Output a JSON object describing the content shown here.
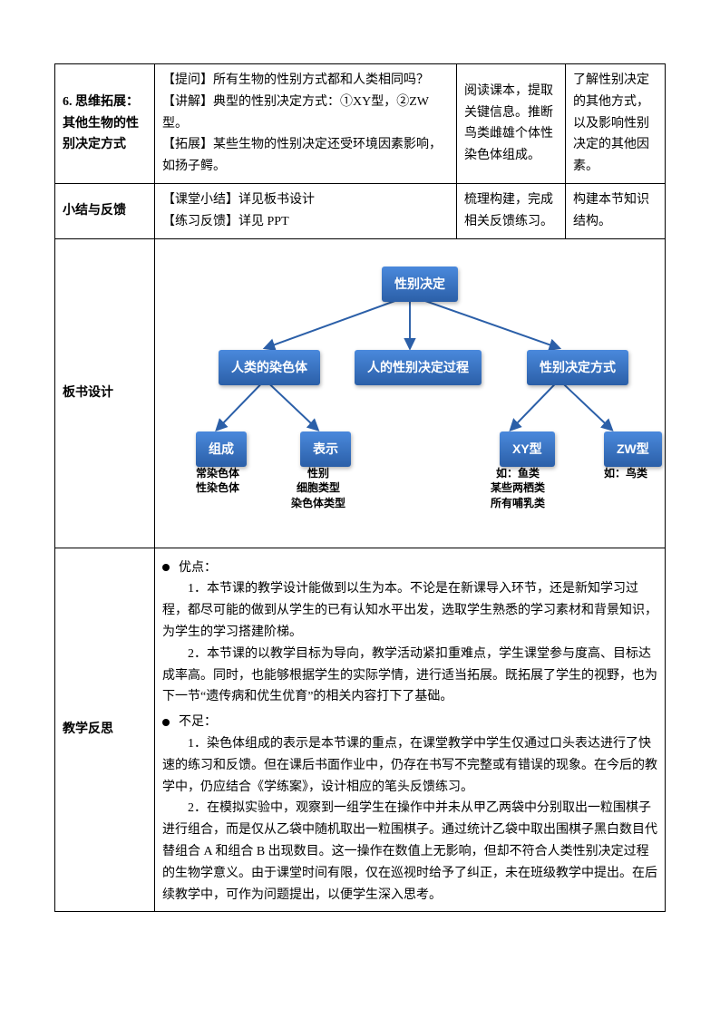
{
  "rows": {
    "r1": {
      "label": "6. 思维拓展：其他生物的性别决定方式",
      "col2_l1": "【提问】所有生物的性别方式都和人类相同吗？",
      "col2_l2": "【讲解】典型的性别决定方式：①XY型，②ZW 型。",
      "col2_l3": "【拓展】某些生物的性别决定还受环境因素影响，如扬子鳄。",
      "col3": "阅读课本，提取关键信息。推断鸟类雌雄个体性染色体组成。",
      "col4": "了解性别决定的其他方式，以及影响性别决定的其他因素。"
    },
    "r2": {
      "label": "小结与反馈",
      "col2_l1": "【课堂小结】详见板书设计",
      "col2_l2": "【练习反馈】详见 PPT",
      "col3": "梳理构建，完成相关反馈练习。",
      "col4": "构建本节知识结构。"
    },
    "board": {
      "label": "板书设计"
    },
    "reflect": {
      "label": "教学反思",
      "adv_header": "优点：",
      "adv_p1": "1．本节课的教学设计能做到以生为本。不论是在新课导入环节，还是新知学习过程，都尽可能的做到从学生的已有认知水平出发，选取学生熟悉的学习素材和背景知识，为学生的学习搭建阶梯。",
      "adv_p2": "2．本节课的以教学目标为导向，教学活动紧扣重难点，学生课堂参与度高、目标达成率高。同时，也能够根据学生的实际学情，进行适当拓展。既拓展了学生的视野，也为下一节“遗传病和优生优育”的相关内容打下了基础。",
      "dis_header": "不足：",
      "dis_p1": "1．染色体组成的表示是本节课的重点，在课堂教学中学生仅通过口头表达进行了快速的练习和反馈。但在课后书面作业中，仍存在书写不完整或有错误的现象。在今后的教学中，仍应结合《学练案》，设计相应的笔头反馈练习。",
      "dis_p2": "2．在模拟实验中，观察到一组学生在操作中并未从甲乙两袋中分别取出一粒围棋子进行组合，而是仅从乙袋中随机取出一粒围棋子。通过统计乙袋中取出围棋子黑白数目代替组合 A 和组合 B 出现数目。这一操作在数值上无影响，但却不符合人类性别决定过程的生物学意义。由于课堂时间有限，仅在巡视时给予了纠正，未在班级教学中提出。在后续教学中，可作为问题提出，以便学生深入思考。"
    }
  },
  "diagram": {
    "root": "性别决定",
    "mid": [
      "人类的染色体",
      "人的性别决定过程",
      "性别决定方式"
    ],
    "leaves": [
      "组成",
      "表示",
      "XY型",
      "ZW型"
    ],
    "captions": [
      "常染色体\n性染色体",
      "性别\n细胞类型\n染色体类型",
      "如：鱼类\n某些两栖类\n所有哺乳类",
      "如：鸟类"
    ],
    "node_color_top": "#4a89dc",
    "node_color_bottom": "#2b5fa8",
    "edge_color": "#2b5fa8"
  }
}
